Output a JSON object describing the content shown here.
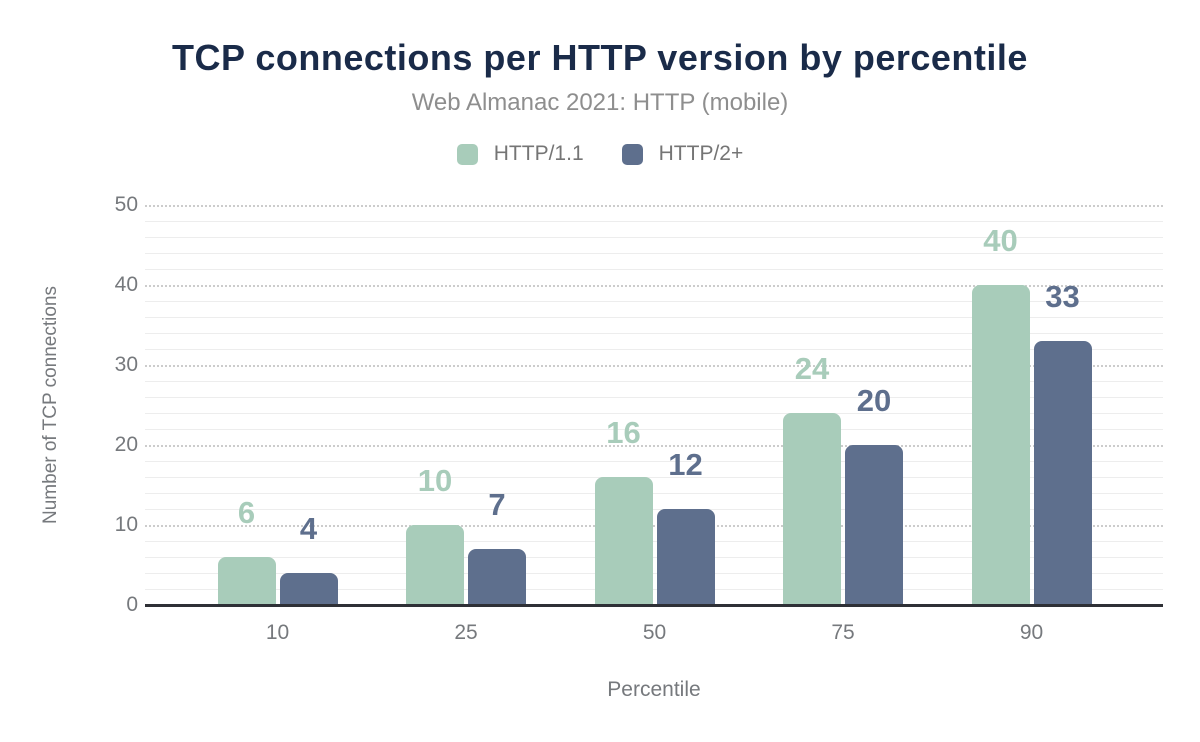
{
  "chart_data": {
    "type": "bar",
    "title": "TCP connections per HTTP version by percentile",
    "subtitle": "Web Almanac 2021: HTTP (mobile)",
    "xlabel": "Percentile",
    "ylabel": "Number of TCP connections",
    "categories": [
      "10",
      "25",
      "50",
      "75",
      "90"
    ],
    "series": [
      {
        "name": "HTTP/1.1",
        "color": "#a8ccba",
        "values": [
          6,
          10,
          16,
          24,
          40
        ]
      },
      {
        "name": "HTTP/2+",
        "color": "#5e6f8d",
        "values": [
          4,
          7,
          12,
          20,
          33
        ]
      }
    ],
    "ylim": [
      0,
      50
    ],
    "yticks": [
      0,
      10,
      20,
      30,
      40,
      50
    ],
    "minor_grid_step": 2,
    "grid": true,
    "legend_position": "top",
    "data_labels": true
  },
  "colors": {
    "title": "#1a2b49",
    "subtitle": "#8e8e8e",
    "legend_text": "#757575",
    "axis_text": "#76797d",
    "axis_line": "#2e3036",
    "grid_major": "#cccccc",
    "grid_minor": "#ededed"
  }
}
